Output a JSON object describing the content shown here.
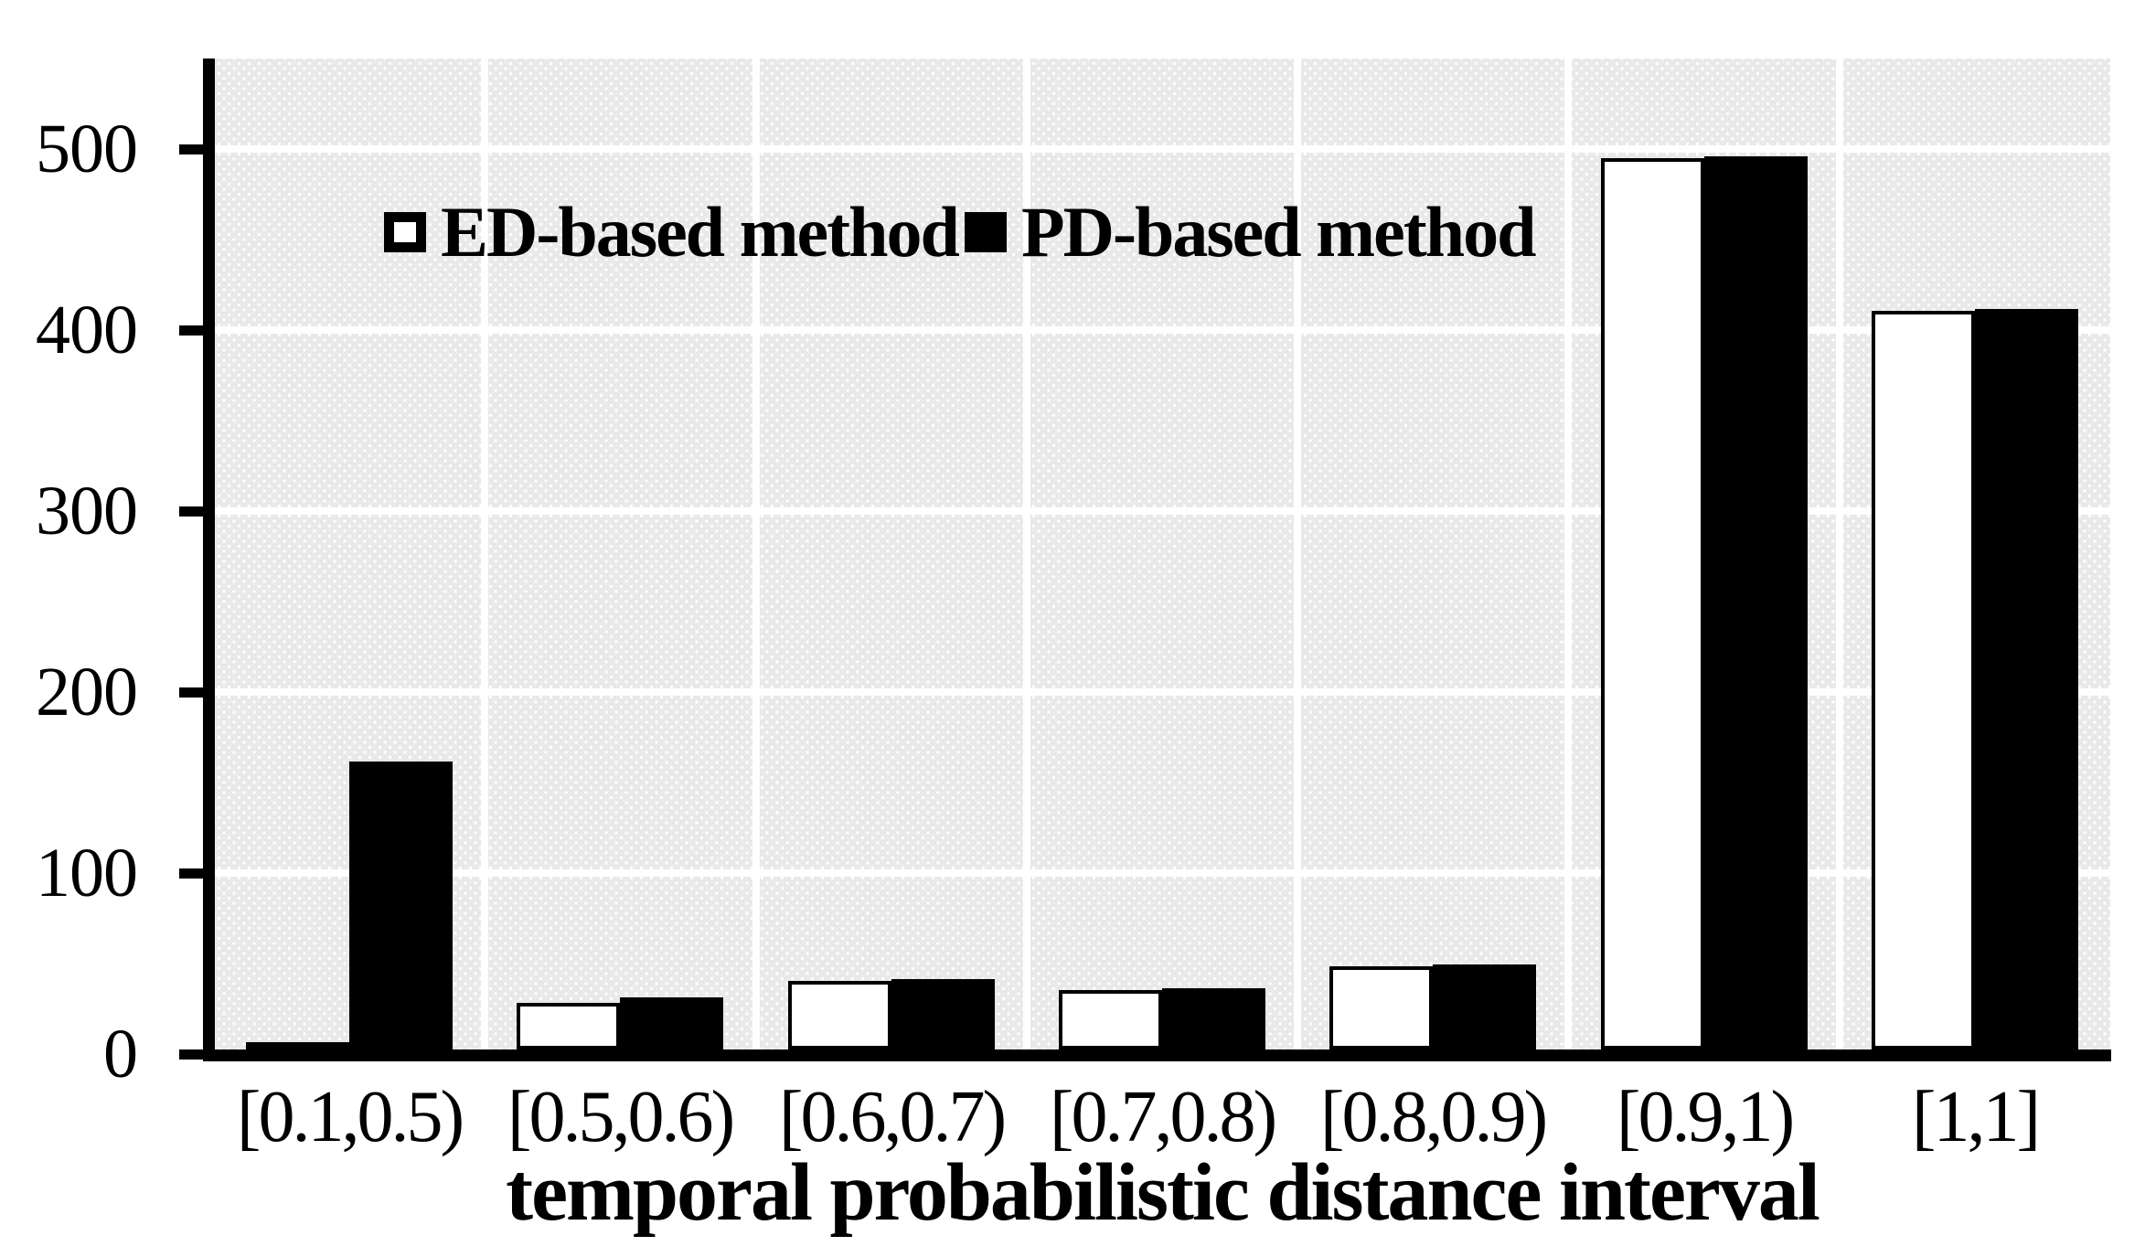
{
  "chart_data": {
    "type": "bar",
    "title": "",
    "xlabel": "temporal probabilistic distance interval",
    "ylabel": "",
    "categories": [
      "[0.1,0.5)",
      "[0.5,0.6)",
      "[0.6,0.7)",
      "[0.7,0.8)",
      "[0.8,0.9)",
      "[0.9,1)",
      "[1,1]"
    ],
    "series": [
      {
        "name": "ED-based method",
        "style": "white-outlined",
        "values": [
          2,
          26,
          38,
          33,
          46,
          495,
          410
        ]
      },
      {
        "name": "PD-based method",
        "style": "black-solid",
        "values": [
          160,
          29,
          39,
          34,
          47,
          496,
          411
        ]
      }
    ],
    "ylim": [
      0,
      550
    ],
    "yticks": [
      0,
      100,
      200,
      300,
      400,
      500
    ],
    "grid": "white horizontal lines at each ytick and white vertical category separators on dotted gray background",
    "legend_position": "top-inside",
    "colors": {
      "bar_black": "#000000",
      "bar_white": "#ffffff",
      "plot_background": "#e9e9e9",
      "gridline": "#ffffff",
      "axis": "#000000",
      "page_background": "#ffffff"
    }
  }
}
